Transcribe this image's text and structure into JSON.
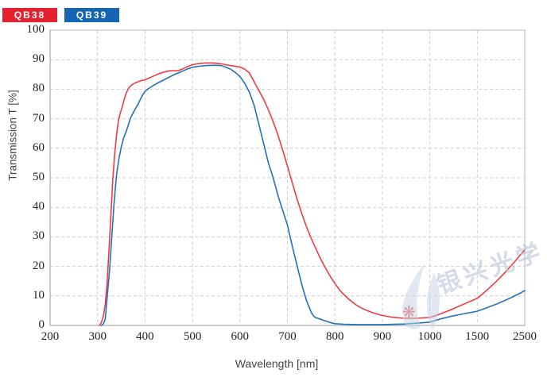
{
  "legend": {
    "items": [
      {
        "label": "QB38",
        "color": "#e6212e"
      },
      {
        "label": "QB39",
        "color": "#1565b3"
      }
    ]
  },
  "watermark": {
    "text": "银兴光学",
    "text_color": "#b9c6dc",
    "flower_color": "#c4505c",
    "logo": "flame-swoosh-logo"
  },
  "chart_data": {
    "type": "line",
    "title": "",
    "xlabel": "Wavelength [nm]",
    "ylabel": "Transmission T [%]",
    "x_ticks": [
      200,
      300,
      400,
      500,
      600,
      700,
      800,
      900,
      1000,
      1500,
      2500
    ],
    "x_axis_note": "ticks equally spaced; scale piecewise-linear between consecutive ticks (compressed above 1000 nm)",
    "y_ticks": [
      0,
      10,
      20,
      30,
      40,
      50,
      60,
      70,
      80,
      90,
      100
    ],
    "ylim": [
      0,
      100
    ],
    "grid": "dashed",
    "legend_position": "top-left outside plot",
    "series": [
      {
        "name": "QB38",
        "color": "#ee3b43",
        "points": [
          [
            304,
            0
          ],
          [
            308,
            1
          ],
          [
            312,
            3
          ],
          [
            316,
            7
          ],
          [
            320,
            14
          ],
          [
            324,
            25
          ],
          [
            328,
            37
          ],
          [
            332,
            49
          ],
          [
            336,
            58
          ],
          [
            340,
            64.5
          ],
          [
            344,
            69.5
          ],
          [
            348,
            72
          ],
          [
            352,
            74
          ],
          [
            356,
            76.5
          ],
          [
            360,
            78.5
          ],
          [
            365,
            80.3
          ],
          [
            370,
            81.2
          ],
          [
            375,
            81.8
          ],
          [
            380,
            82.2
          ],
          [
            390,
            82.8
          ],
          [
            400,
            83.2
          ],
          [
            410,
            83.9
          ],
          [
            420,
            84.6
          ],
          [
            430,
            85.3
          ],
          [
            440,
            85.8
          ],
          [
            450,
            86.2
          ],
          [
            460,
            86.3
          ],
          [
            470,
            86.3
          ],
          [
            480,
            86.9
          ],
          [
            490,
            87.7
          ],
          [
            500,
            88.3
          ],
          [
            510,
            88.6
          ],
          [
            520,
            88.8
          ],
          [
            530,
            88.9
          ],
          [
            540,
            88.9
          ],
          [
            550,
            88.8
          ],
          [
            560,
            88.6
          ],
          [
            570,
            88.3
          ],
          [
            580,
            88
          ],
          [
            590,
            87.8
          ],
          [
            600,
            87.5
          ],
          [
            610,
            86.8
          ],
          [
            620,
            85.5
          ],
          [
            630,
            82.5
          ],
          [
            640,
            79.5
          ],
          [
            650,
            76.5
          ],
          [
            660,
            73
          ],
          [
            670,
            69
          ],
          [
            680,
            64.5
          ],
          [
            690,
            59.5
          ],
          [
            700,
            54
          ],
          [
            710,
            48.5
          ],
          [
            720,
            43
          ],
          [
            730,
            38
          ],
          [
            740,
            33.5
          ],
          [
            750,
            29.5
          ],
          [
            760,
            26
          ],
          [
            770,
            22.5
          ],
          [
            780,
            19.5
          ],
          [
            790,
            16.7
          ],
          [
            800,
            14.2
          ],
          [
            810,
            12
          ],
          [
            820,
            10.3
          ],
          [
            830,
            8.8
          ],
          [
            840,
            7.5
          ],
          [
            850,
            6.4
          ],
          [
            860,
            5.6
          ],
          [
            870,
            4.9
          ],
          [
            880,
            4.3
          ],
          [
            890,
            3.8
          ],
          [
            900,
            3.4
          ],
          [
            920,
            2.8
          ],
          [
            940,
            2.5
          ],
          [
            960,
            2.4
          ],
          [
            980,
            2.5
          ],
          [
            1000,
            2.7
          ],
          [
            1050,
            3.2
          ],
          [
            1100,
            3.8
          ],
          [
            1150,
            4.4
          ],
          [
            1200,
            5
          ],
          [
            1300,
            6.4
          ],
          [
            1400,
            7.8
          ],
          [
            1500,
            9.2
          ],
          [
            1600,
            10.5
          ],
          [
            1700,
            11.9
          ],
          [
            1800,
            13.4
          ],
          [
            1900,
            14.9
          ],
          [
            2000,
            16.5
          ],
          [
            2100,
            18.2
          ],
          [
            2200,
            20
          ],
          [
            2300,
            21.8
          ],
          [
            2400,
            23.7
          ],
          [
            2500,
            25.6
          ]
        ]
      },
      {
        "name": "QB39",
        "color": "#2471b8",
        "points": [
          [
            308,
            0
          ],
          [
            312,
            0.5
          ],
          [
            316,
            2
          ],
          [
            320,
            9
          ],
          [
            325,
            18
          ],
          [
            330,
            30
          ],
          [
            335,
            42
          ],
          [
            340,
            51
          ],
          [
            345,
            56.5
          ],
          [
            350,
            60.5
          ],
          [
            355,
            63.5
          ],
          [
            360,
            65.5
          ],
          [
            365,
            68
          ],
          [
            370,
            70.5
          ],
          [
            375,
            72
          ],
          [
            380,
            73.5
          ],
          [
            385,
            74.8
          ],
          [
            390,
            76.5
          ],
          [
            395,
            78
          ],
          [
            400,
            79.3
          ],
          [
            410,
            80.5
          ],
          [
            420,
            81.5
          ],
          [
            430,
            82.4
          ],
          [
            440,
            83.2
          ],
          [
            450,
            84
          ],
          [
            460,
            84.8
          ],
          [
            470,
            85.5
          ],
          [
            480,
            86.2
          ],
          [
            490,
            86.9
          ],
          [
            500,
            87.4
          ],
          [
            510,
            87.7
          ],
          [
            520,
            87.9
          ],
          [
            530,
            88
          ],
          [
            540,
            88.1
          ],
          [
            550,
            88.1
          ],
          [
            560,
            88
          ],
          [
            570,
            87.5
          ],
          [
            580,
            86.8
          ],
          [
            590,
            85.7
          ],
          [
            600,
            84.3
          ],
          [
            610,
            82
          ],
          [
            620,
            79
          ],
          [
            630,
            74.5
          ],
          [
            640,
            68
          ],
          [
            650,
            61.5
          ],
          [
            660,
            55
          ],
          [
            670,
            50
          ],
          [
            680,
            44
          ],
          [
            690,
            39
          ],
          [
            700,
            34
          ],
          [
            710,
            27
          ],
          [
            720,
            20.5
          ],
          [
            730,
            14
          ],
          [
            740,
            8.5
          ],
          [
            750,
            4.5
          ],
          [
            755,
            3.2
          ],
          [
            760,
            2.6
          ],
          [
            770,
            2.1
          ],
          [
            780,
            1.5
          ],
          [
            790,
            1
          ],
          [
            800,
            0.6
          ],
          [
            820,
            0.4
          ],
          [
            850,
            0.3
          ],
          [
            900,
            0.3
          ],
          [
            950,
            0.5
          ],
          [
            1000,
            1.1
          ],
          [
            1100,
            2.1
          ],
          [
            1200,
            2.9
          ],
          [
            1300,
            3.6
          ],
          [
            1400,
            4.2
          ],
          [
            1500,
            4.8
          ],
          [
            1600,
            5.4
          ],
          [
            1700,
            6
          ],
          [
            1800,
            6.6
          ],
          [
            1900,
            7.2
          ],
          [
            2000,
            7.9
          ],
          [
            2100,
            8.6
          ],
          [
            2200,
            9.3
          ],
          [
            2300,
            10.1
          ],
          [
            2400,
            10.9
          ],
          [
            2500,
            11.8
          ]
        ]
      }
    ]
  }
}
